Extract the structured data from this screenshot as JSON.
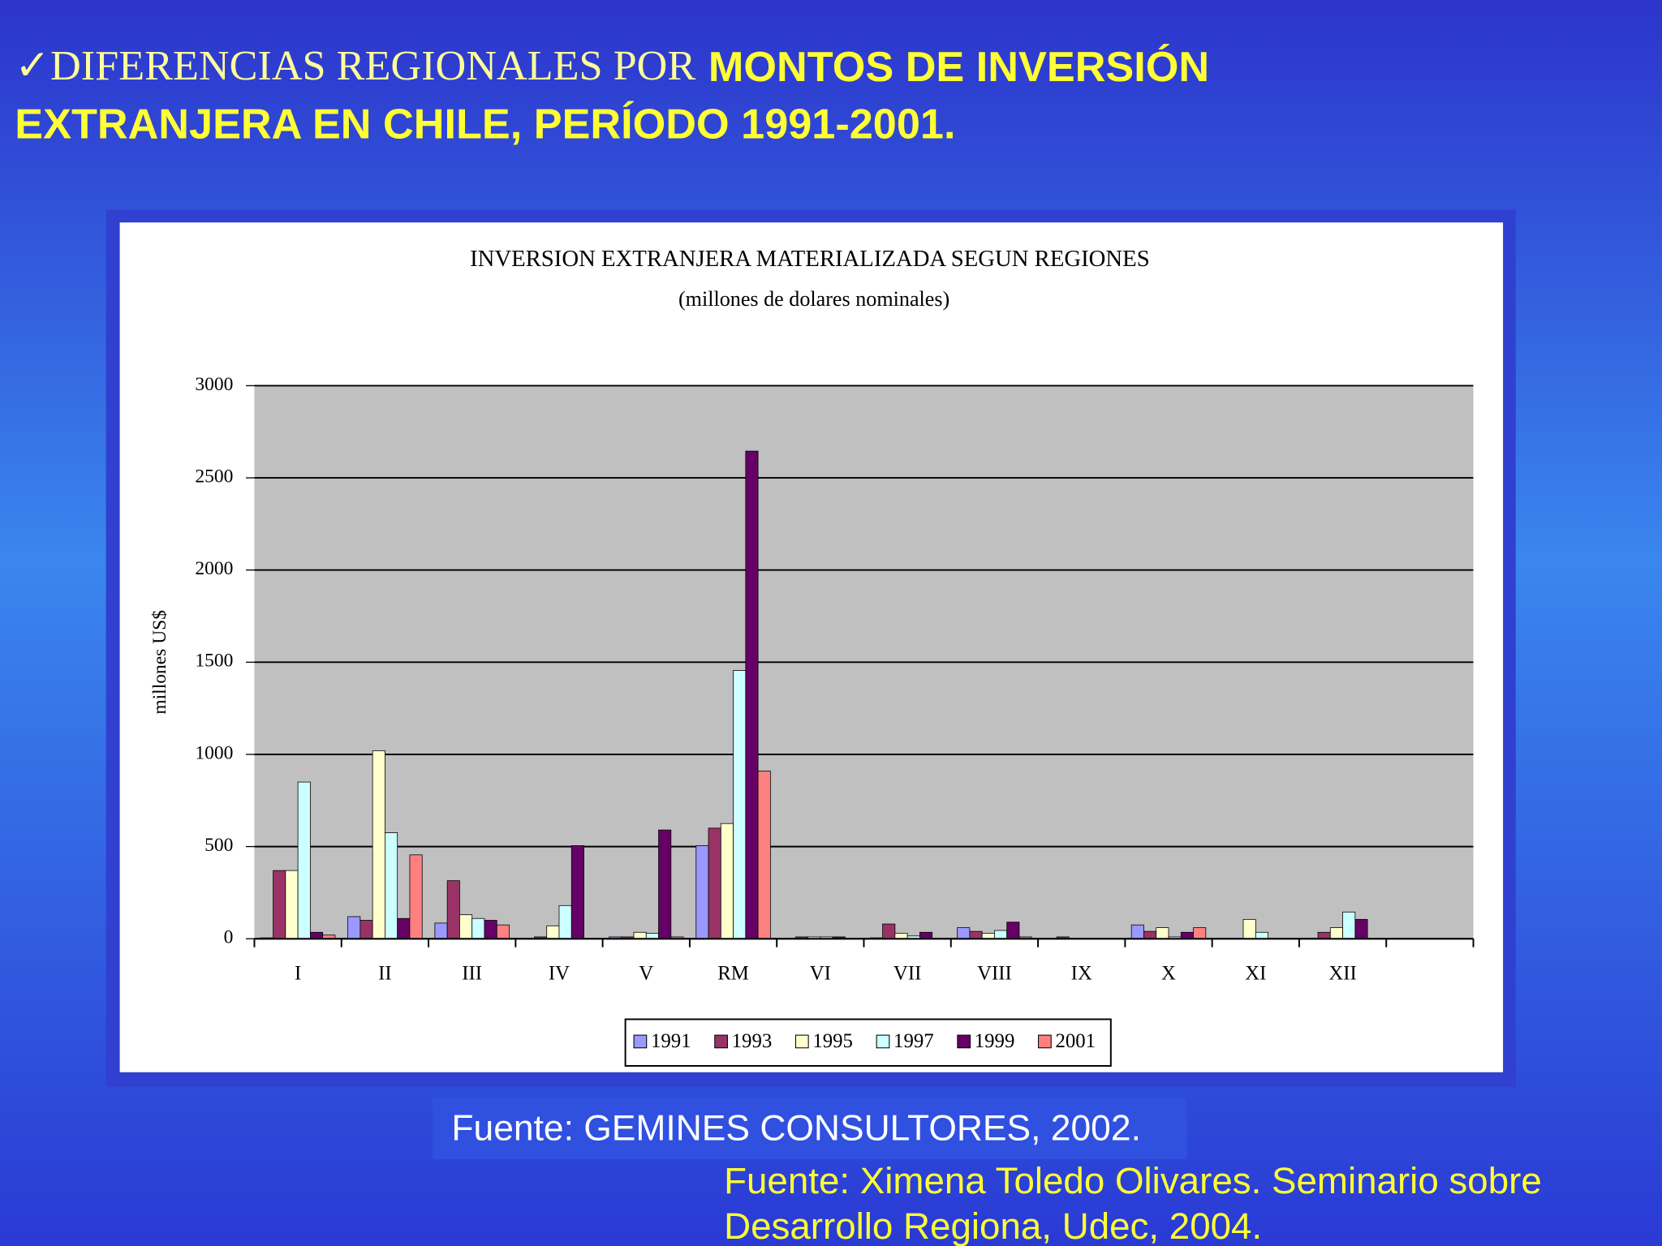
{
  "slide": {
    "title_part1": "✓DIFERENCIAS REGIONALES POR",
    "title_part2": "MONTOS DE INVERSIÓN",
    "title_line2": "EXTRANJERA EN CHILE,  PERÍODO 1991-2001.",
    "source_box": "Fuente: GEMINES CONSULTORES, 2002.",
    "source_line1": "Fuente: Ximena Toledo Olivares. Seminario sobre",
    "source_line2": "Desarrollo Regiona, Udec, 2004."
  },
  "chart_data": {
    "type": "bar",
    "title": "INVERSION EXTRANJERA MATERIALIZADA SEGUN REGIONES",
    "subtitle": "(millones de dolares nominales)",
    "y_label": "millones US$",
    "categories": [
      "I",
      "II",
      "III",
      "IV",
      "V",
      "RM",
      "VI",
      "VII",
      "VIII",
      "IX",
      "X",
      "XI",
      "XII",
      null
    ],
    "series": [
      {
        "name": "1991",
        "color": "#9999ff",
        "values": [
          5,
          120,
          85,
          0,
          10,
          505,
          0,
          5,
          60,
          0,
          75,
          0,
          0,
          null
        ]
      },
      {
        "name": "1993",
        "color": "#993366",
        "values": [
          370,
          100,
          315,
          10,
          10,
          600,
          10,
          80,
          40,
          10,
          40,
          0,
          35,
          null
        ]
      },
      {
        "name": "1995",
        "color": "#ffffcc",
        "values": [
          370,
          1020,
          130,
          70,
          35,
          625,
          10,
          30,
          30,
          0,
          60,
          105,
          60,
          null
        ]
      },
      {
        "name": "1997",
        "color": "#ccffff",
        "values": [
          850,
          575,
          110,
          180,
          30,
          1455,
          10,
          15,
          45,
          0,
          10,
          35,
          145,
          null
        ]
      },
      {
        "name": "1999",
        "color": "#660066",
        "values": [
          35,
          110,
          100,
          505,
          590,
          2645,
          10,
          35,
          90,
          0,
          35,
          0,
          105,
          null
        ]
      },
      {
        "name": "2001",
        "color": "#ff8080",
        "values": [
          20,
          455,
          75,
          0,
          10,
          910,
          0,
          0,
          10,
          0,
          60,
          0,
          0,
          null
        ]
      }
    ],
    "ylim": [
      0,
      3000
    ],
    "yticks": [
      0,
      500,
      1000,
      1500,
      2000,
      2500,
      3000
    ],
    "grid": true
  }
}
